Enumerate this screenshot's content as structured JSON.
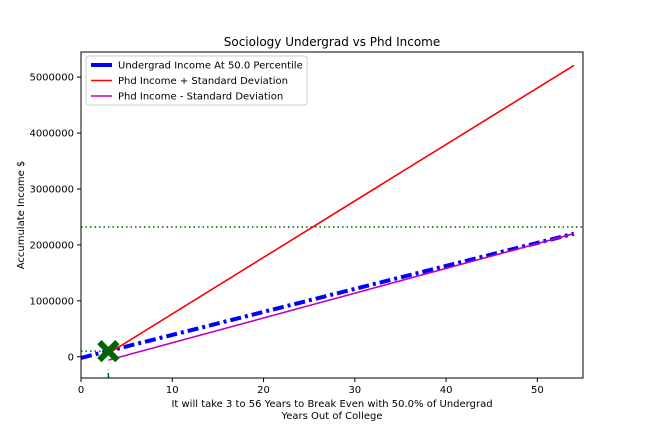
{
  "chart_data": {
    "type": "line",
    "title": "Sociology Undergrad vs Phd Income",
    "xlabel_line1": "It will take 3 to 56 Years to Break Even with 50.0% of Undergrad",
    "xlabel_line2": "Years Out of College",
    "ylabel": "Accumulate Income $",
    "xlim": [
      0,
      55
    ],
    "ylim": [
      -380000,
      5450000
    ],
    "xticks": [
      0,
      10,
      20,
      30,
      40,
      50
    ],
    "yticks": [
      0,
      1000000,
      2000000,
      3000000,
      4000000,
      5000000
    ],
    "ytick_labels": [
      "0",
      "1000000",
      "2000000",
      "3000000",
      "4000000",
      "5000000"
    ],
    "grid": false,
    "legend_position": "top-left",
    "series": [
      {
        "name": "Undergrad Income At 50.0 Percentile",
        "color": "#0000ff",
        "style": "dashdot",
        "x": [
          0,
          54
        ],
        "y": [
          -20000,
          2200000
        ]
      },
      {
        "name": "Phd Income + Standard Deviation",
        "color": "#ff0000",
        "style": "solid",
        "x": [
          3,
          54
        ],
        "y": [
          60000,
          5210000
        ]
      },
      {
        "name": "Phd Income - Standard Deviation",
        "color": "#bf00bf",
        "style": "solid",
        "x": [
          3,
          54
        ],
        "y": [
          -60000,
          2200000
        ]
      }
    ],
    "reference_lines": [
      {
        "orientation": "horizontal",
        "value": 2320000,
        "color": "#006400",
        "style": "dotted"
      },
      {
        "orientation": "horizontal",
        "value": 100000,
        "color": "#006400",
        "style": "dotted",
        "x_range": [
          0,
          2.5
        ]
      },
      {
        "orientation": "vertical",
        "value": 3,
        "color": "#006400",
        "style": "dashed",
        "y_range": [
          -380000,
          -230000
        ]
      }
    ],
    "markers": [
      {
        "x": 3,
        "y": 100000,
        "symbol": "X",
        "color": "#006400"
      }
    ]
  }
}
